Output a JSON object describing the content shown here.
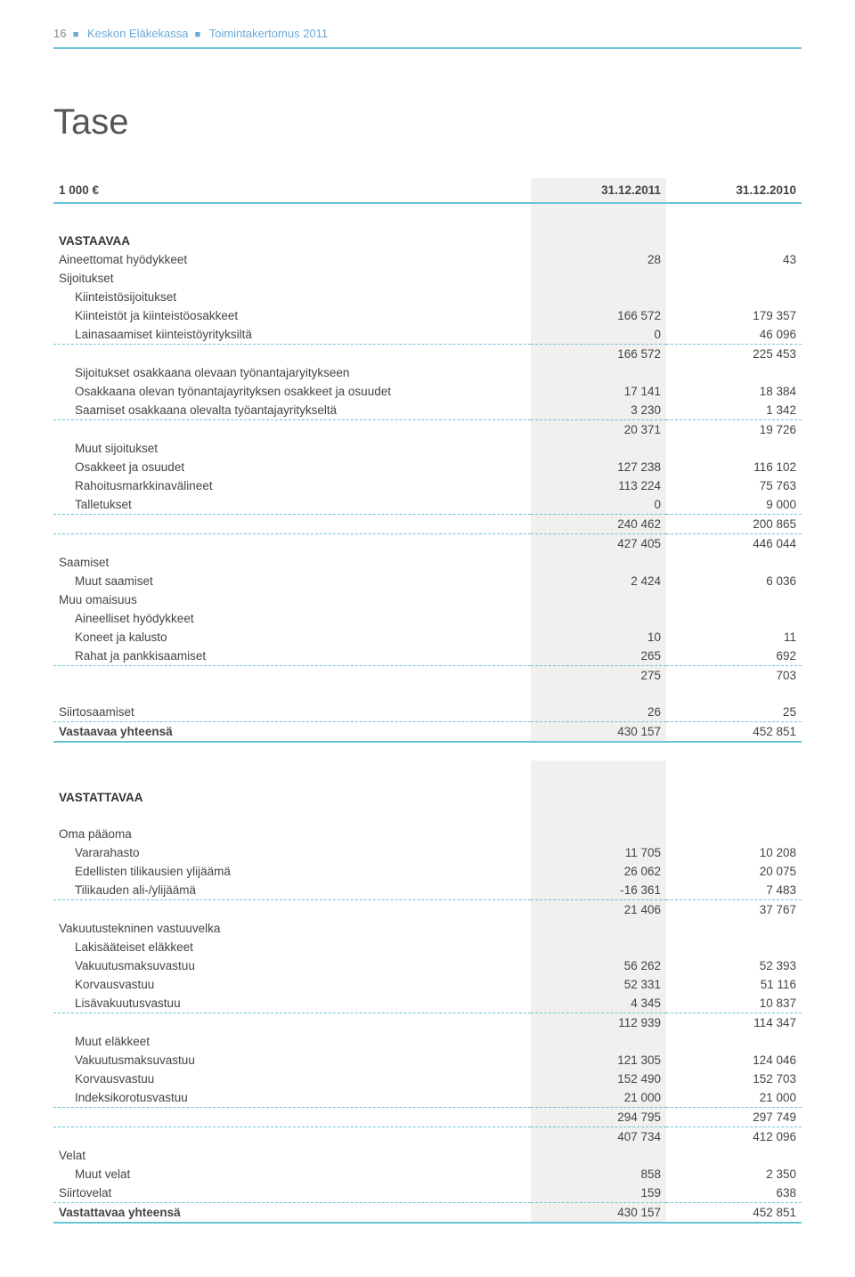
{
  "header": {
    "page_number": "16",
    "org": "Keskon Eläkekassa",
    "doc": "Toimintakertomus 2011"
  },
  "title": "Tase",
  "columns": {
    "label": "1 000 €",
    "col1": "31.12.2011",
    "col2": "31.12.2010"
  },
  "s_vastaavaa": "VASTAAVAA",
  "r_aineettomat": {
    "label": "Aineettomat hyödykkeet",
    "c1": "28",
    "c2": "43"
  },
  "r_sijoitukset": "Sijoitukset",
  "r_kiintsij": "Kiinteistösijoitukset",
  "r_kiintosak": {
    "label": "Kiinteistöt ja kiinteistöosakkeet",
    "c1": "166 572",
    "c2": "179 357"
  },
  "r_lainasaam": {
    "label": "Lainasaamiset kiinteistöyrityksiltä",
    "c1": "0",
    "c2": "46 096"
  },
  "r_sub1": {
    "c1": "166 572",
    "c2": "225 453"
  },
  "r_sijosak_header": "Sijoitukset osakkaana olevaan työnantajaryitykseen",
  "r_osakkaana": {
    "label": "Osakkaana olevan työnantajayrityksen osakkeet ja osuudet",
    "c1": "17 141",
    "c2": "18 384"
  },
  "r_saamisetosak": {
    "label": "Saamiset osakkaana olevalta työantajayritykseltä",
    "c1": "3 230",
    "c2": "1 342"
  },
  "r_sub2": {
    "c1": "20 371",
    "c2": "19 726"
  },
  "r_muutsij": "Muut sijoitukset",
  "r_osakkeet": {
    "label": "Osakkeet ja osuudet",
    "c1": "127 238",
    "c2": "116 102"
  },
  "r_rahoitusmv": {
    "label": "Rahoitusmarkkinavälineet",
    "c1": "113 224",
    "c2": "75 763"
  },
  "r_talletukset": {
    "label": "Talletukset",
    "c1": "0",
    "c2": "9 000"
  },
  "r_sub3": {
    "c1": "240 462",
    "c2": "200 865"
  },
  "r_sub4": {
    "c1": "427 405",
    "c2": "446 044"
  },
  "r_saamiset": "Saamiset",
  "r_muutsaam": {
    "label": "Muut saamiset",
    "c1": "2 424",
    "c2": "6 036"
  },
  "r_muuom": "Muu omaisuus",
  "r_aineell": "Aineelliset hyödykkeet",
  "r_koneet": {
    "label": "Koneet ja kalusto",
    "c1": "10",
    "c2": "11"
  },
  "r_rahatpankki": {
    "label": "Rahat ja pankkisaamiset",
    "c1": "265",
    "c2": "692"
  },
  "r_sub5": {
    "c1": "275",
    "c2": "703"
  },
  "r_siirtosaam": {
    "label": "Siirtosaamiset",
    "c1": "26",
    "c2": "25"
  },
  "r_vastaavaa_yht": {
    "label": "Vastaavaa yhteensä",
    "c1": "430 157",
    "c2": "452 851"
  },
  "s_vastattavaa": "VASTATTAVAA",
  "r_omapaa": "Oma pääoma",
  "r_vararahasto": {
    "label": "Vararahasto",
    "c1": "11 705",
    "c2": "10 208"
  },
  "r_edellisten": {
    "label": "Edellisten tilikausien ylijäämä",
    "c1": "26 062",
    "c2": "20 075"
  },
  "r_tilikauden": {
    "label": "Tilikauden ali-/ylijäämä",
    "c1": "-16 361",
    "c2": "7 483"
  },
  "r_sub6": {
    "c1": "21 406",
    "c2": "37 767"
  },
  "r_vaktek": "Vakuutustekninen vastuuvelka",
  "r_lakisaat": "Lakisääteiset eläkkeet",
  "r_vakmaksu1": {
    "label": "Vakuutusmaksuvastuu",
    "c1": "56 262",
    "c2": "52 393"
  },
  "r_korvaus1": {
    "label": "Korvausvastuu",
    "c1": "52 331",
    "c2": "51 116"
  },
  "r_lisavak": {
    "label": "Lisävakuutusvastuu",
    "c1": "4 345",
    "c2": "10 837"
  },
  "r_sub7": {
    "c1": "112 939",
    "c2": "114 347"
  },
  "r_muutelak": "Muut eläkkeet",
  "r_vakmaksu2": {
    "label": "Vakuutusmaksuvastuu",
    "c1": "121 305",
    "c2": "124 046"
  },
  "r_korvaus2": {
    "label": "Korvausvastuu",
    "c1": "152 490",
    "c2": "152 703"
  },
  "r_indeksi": {
    "label": "Indeksikorotusvastuu",
    "c1": "21 000",
    "c2": "21 000"
  },
  "r_sub8": {
    "c1": "294 795",
    "c2": "297 749"
  },
  "r_sub9": {
    "c1": "407 734",
    "c2": "412 096"
  },
  "r_velat": "Velat",
  "r_muutvelat": {
    "label": "Muut velat",
    "c1": "858",
    "c2": "2 350"
  },
  "r_siirtovelat": {
    "label": "Siirtovelat",
    "c1": "159",
    "c2": "638"
  },
  "r_vastattavaa_yht": {
    "label": "Vastattavaa yhteensä",
    "c1": "430 157",
    "c2": "452 851"
  }
}
